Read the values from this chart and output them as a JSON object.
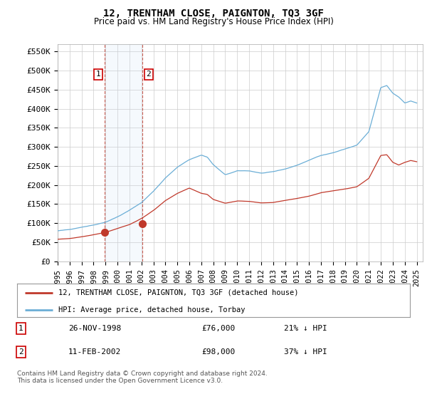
{
  "title": "12, TRENTHAM CLOSE, PAIGNTON, TQ3 3GF",
  "subtitle": "Price paid vs. HM Land Registry's House Price Index (HPI)",
  "ylabel_ticks": [
    0,
    50000,
    100000,
    150000,
    200000,
    250000,
    300000,
    350000,
    400000,
    450000,
    500000,
    550000
  ],
  "ytick_labels": [
    "£0",
    "£50K",
    "£100K",
    "£150K",
    "£200K",
    "£250K",
    "£300K",
    "£350K",
    "£400K",
    "£450K",
    "£500K",
    "£550K"
  ],
  "xlim_start": 1995.0,
  "xlim_end": 2025.5,
  "ylim_min": 0,
  "ylim_max": 570000,
  "hpi_color": "#6baed6",
  "price_color": "#c0392b",
  "legend_label_price": "12, TRENTHAM CLOSE, PAIGNTON, TQ3 3GF (detached house)",
  "legend_label_hpi": "HPI: Average price, detached house, Torbay",
  "transaction1_label": "1",
  "transaction1_date": "26-NOV-1998",
  "transaction1_price": "£76,000",
  "transaction1_pct": "21% ↓ HPI",
  "transaction1_year": 1998.9,
  "transaction1_value": 76000,
  "transaction2_label": "2",
  "transaction2_date": "11-FEB-2002",
  "transaction2_price": "£98,000",
  "transaction2_pct": "37% ↓ HPI",
  "transaction2_year": 2002.1,
  "transaction2_value": 98000,
  "footer": "Contains HM Land Registry data © Crown copyright and database right 2024.\nThis data is licensed under the Open Government Licence v3.0.",
  "highlight_color": "#cce0f5",
  "dashed_line_color": "#c0392b",
  "grid_color": "#cccccc",
  "background_color": "#ffffff"
}
